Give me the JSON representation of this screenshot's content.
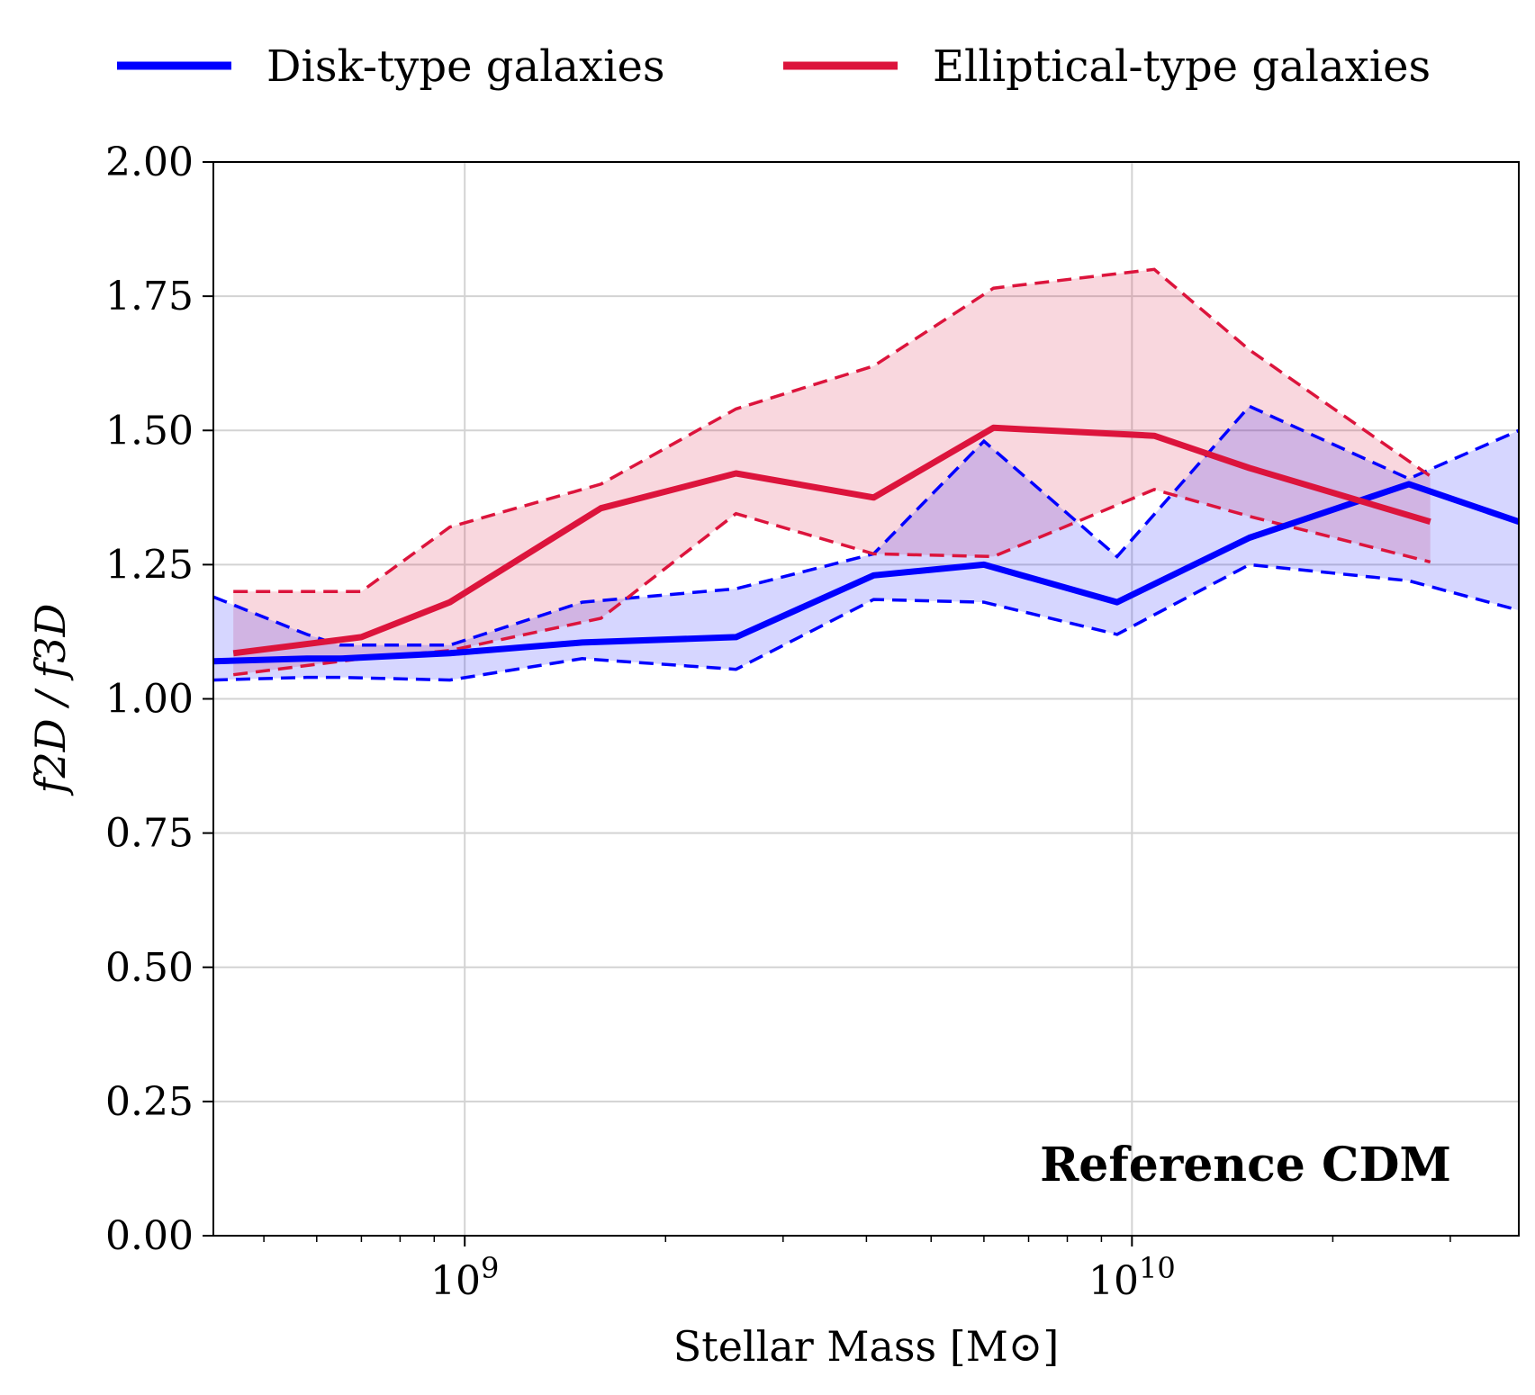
{
  "chart_data": {
    "type": "line",
    "xlabel": "Stellar Mass [M⊙]",
    "ylabel": "f2D / f3D",
    "xscale": "log",
    "xlim": [
      420000000,
      38000000000
    ],
    "ylim": [
      0,
      2
    ],
    "yticks": [
      "0.00",
      "0.25",
      "0.50",
      "0.75",
      "1.00",
      "1.25",
      "1.50",
      "1.75",
      "2.00"
    ],
    "xticks": [
      {
        "base": "10",
        "exp": "9",
        "value": 1000000000
      },
      {
        "base": "10",
        "exp": "10",
        "value": 10000000000
      }
    ],
    "grid": true,
    "legend_position": "top",
    "annotation": "Reference CDM",
    "series": [
      {
        "name": "Disk-type galaxies",
        "color": "#0000ff",
        "x": [
          420000000,
          580000000,
          650000000,
          950000000,
          1500000000,
          2550000000,
          4100000000,
          6000000000,
          9500000000,
          15000000000,
          26000000000,
          38000000000
        ],
        "median": [
          1.07,
          1.075,
          1.075,
          1.085,
          1.105,
          1.115,
          1.23,
          1.25,
          1.18,
          1.3,
          1.4,
          1.33
        ],
        "upper": [
          1.19,
          1.12,
          1.1,
          1.1,
          1.18,
          1.205,
          1.27,
          1.48,
          1.265,
          1.545,
          1.41,
          1.5
        ],
        "lower": [
          1.035,
          1.04,
          1.04,
          1.035,
          1.075,
          1.055,
          1.185,
          1.18,
          1.12,
          1.25,
          1.22,
          1.165
        ]
      },
      {
        "name": "Elliptical-type galaxies",
        "color": "#dc143c",
        "x": [
          450000000,
          700000000,
          950000000,
          1600000000,
          2550000000,
          4100000000,
          6200000000,
          10800000000,
          15000000000,
          28000000000
        ],
        "median": [
          1.085,
          1.115,
          1.18,
          1.355,
          1.42,
          1.375,
          1.505,
          1.49,
          1.43,
          1.33
        ],
        "upper": [
          1.2,
          1.2,
          1.32,
          1.4,
          1.54,
          1.62,
          1.765,
          1.8,
          1.65,
          1.415
        ],
        "lower": [
          1.045,
          1.075,
          1.09,
          1.15,
          1.345,
          1.27,
          1.265,
          1.39,
          1.34,
          1.255
        ]
      }
    ]
  }
}
